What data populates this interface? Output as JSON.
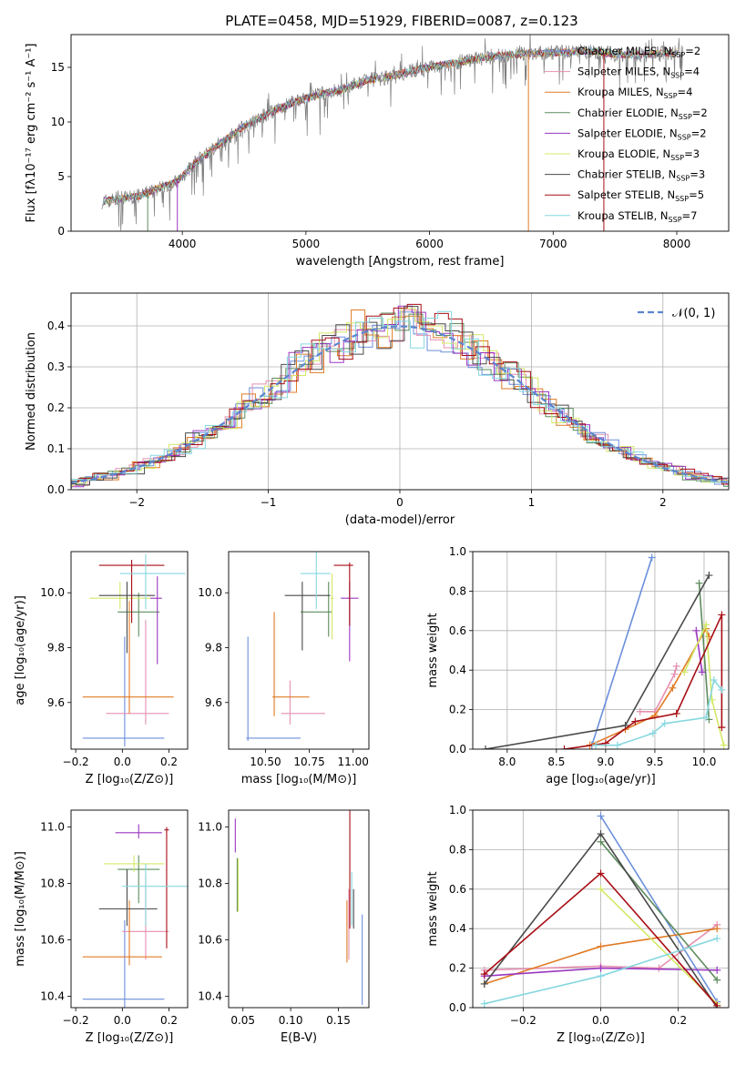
{
  "title": "PLATE=0458, MJD=51929, FIBERID=0087, z=0.123",
  "series_colors": [
    "#6b8fdc",
    "#e58fb0",
    "#e07b25",
    "#5e8c5e",
    "#9a36c0",
    "#d4e867",
    "#4a4a4a",
    "#a80e15",
    "#86d7df"
  ],
  "chart_data": [
    {
      "type": "line",
      "panel": "spectrum",
      "xlabel": "wavelength [Angstrom, rest frame]",
      "ylabel": "Flux [fλ10⁻¹⁷ erg cm⁻² s⁻¹ A⁻¹]",
      "xlim": [
        3100,
        8420
      ],
      "ylim": [
        0,
        18
      ],
      "xticks": [
        "4000",
        "5000",
        "6000",
        "7000",
        "8000"
      ],
      "yticks": [
        "0",
        "5",
        "10",
        "15"
      ],
      "data_color": "#7f7f7f",
      "data_envelope": {
        "x": [
          3350,
          3500,
          3650,
          3800,
          3950,
          4100,
          4300,
          4500,
          4700,
          4900,
          5100,
          5300,
          5500,
          5700,
          5900,
          6100,
          6300,
          6500,
          6700,
          6900,
          7100,
          7300,
          7500,
          7700,
          7900,
          8050
        ],
        "y": [
          2.7,
          3.0,
          3.2,
          3.9,
          4.5,
          6.2,
          8.0,
          9.6,
          10.8,
          11.8,
          12.5,
          13.0,
          13.8,
          14.2,
          14.8,
          15.2,
          15.6,
          16.0,
          16.2,
          16.3,
          16.4,
          16.5,
          16.2,
          16.1,
          16.3,
          16.4
        ]
      },
      "legend": [
        {
          "base": "Chabrier MILES, N",
          "sub": "SSP",
          "val": "=2"
        },
        {
          "base": "Salpeter MILES, N",
          "sub": "SSP",
          "val": "=4"
        },
        {
          "base": "Kroupa MILES, N",
          "sub": "SSP",
          "val": "=4"
        },
        {
          "base": "Chabrier ELODIE, N",
          "sub": "SSP",
          "val": "=2"
        },
        {
          "base": "Salpeter ELODIE, N",
          "sub": "SSP",
          "val": "=2"
        },
        {
          "base": "Kroupa ELODIE, N",
          "sub": "SSP",
          "val": "=3"
        },
        {
          "base": "Chabrier STELIB, N",
          "sub": "SSP",
          "val": "=3"
        },
        {
          "base": "Salpeter STELIB, N",
          "sub": "SSP",
          "val": "=5"
        },
        {
          "base": "Kroupa STELIB, N",
          "sub": "SSP",
          "val": "=7"
        }
      ],
      "legend_position": "right"
    },
    {
      "type": "histogram",
      "panel": "residuals",
      "xlabel": "(data-model)/error",
      "ylabel": "Normed distribution",
      "xlim": [
        -2.5,
        2.5
      ],
      "ylim": [
        0,
        0.48
      ],
      "xticks": [
        "−2",
        "−1",
        "0",
        "1",
        "2"
      ],
      "yticks": [
        "0.0",
        "0.1",
        "0.2",
        "0.3",
        "0.4"
      ],
      "grid": true,
      "legend": "𝒩(0, 1)",
      "legend_position": "top-right"
    },
    {
      "type": "scatter",
      "panel": "age-vs-Z",
      "xlabel": "Z [log₁₀(Z/Z⊙)]",
      "ylabel": "age  [log₁₀(age/yr)]",
      "xlim": [
        -0.22,
        0.28
      ],
      "ylim": [
        9.43,
        10.15
      ],
      "xticks": [
        "−0.2",
        "0.0",
        "0.2"
      ],
      "yticks": [
        "9.6",
        "9.8",
        "10.0"
      ],
      "points": [
        {
          "x": 0.01,
          "y": 9.47,
          "xerr": [
            0.18,
            0.17
          ],
          "yerr": [
            0.03,
            0.37
          ]
        },
        {
          "x": 0.1,
          "y": 9.56,
          "xerr": [
            0.17,
            0.1
          ],
          "yerr": [
            0.04,
            0.34
          ]
        },
        {
          "x": 0.03,
          "y": 9.62,
          "xerr": [
            0.2,
            0.19
          ],
          "yerr": [
            0.06,
            0.35
          ]
        },
        {
          "x": 0.07,
          "y": 9.93,
          "xerr": [
            0.09,
            0.09
          ],
          "yerr": [
            0.09,
            0.07
          ]
        },
        {
          "x": 0.15,
          "y": 9.98,
          "xerr": [
            0.03,
            0.02
          ],
          "yerr": [
            0.24,
            0.08
          ]
        },
        {
          "x": -0.01,
          "y": 9.98,
          "xerr": [
            0.13,
            0.13
          ],
          "yerr": [
            0.04,
            0.06
          ]
        },
        {
          "x": 0.02,
          "y": 9.99,
          "xerr": [
            0.12,
            0.12
          ],
          "yerr": [
            0.21,
            0.05
          ]
        },
        {
          "x": 0.04,
          "y": 10.1,
          "xerr": [
            0.14,
            0.14
          ],
          "yerr": [
            0.21,
            0.02
          ]
        },
        {
          "x": 0.1,
          "y": 10.07,
          "xerr": [
            0.11,
            0.17
          ],
          "yerr": [
            0.13,
            0.07
          ]
        }
      ]
    },
    {
      "type": "scatter",
      "panel": "age-vs-mass",
      "xlabel": "mass [log₁₀(M/M⊙)]",
      "ylabel": "",
      "xlim": [
        10.29,
        11.09
      ],
      "ylim": [
        9.43,
        10.15
      ],
      "xticks": [
        "10.50",
        "10.75",
        "11.00"
      ],
      "yticks": [
        "9.6",
        "9.8",
        "10.0"
      ],
      "points": [
        {
          "x": 10.4,
          "y": 9.47,
          "xerr": [
            0.01,
            0.3
          ],
          "yerr": [
            0.01,
            0.37
          ]
        },
        {
          "x": 10.64,
          "y": 9.56,
          "xerr": [
            0.05,
            0.2
          ],
          "yerr": [
            0.04,
            0.12
          ]
        },
        {
          "x": 10.55,
          "y": 9.62,
          "xerr": [
            0.01,
            0.2
          ],
          "yerr": [
            0.07,
            0.31
          ]
        },
        {
          "x": 10.86,
          "y": 9.93,
          "xerr": [
            0.16,
            0.02
          ],
          "yerr": [
            0.09,
            0.11
          ]
        },
        {
          "x": 10.98,
          "y": 9.98,
          "xerr": [
            0.05,
            0.05
          ],
          "yerr": [
            0.23,
            0.06
          ]
        },
        {
          "x": 10.88,
          "y": 9.98,
          "xerr": [
            0.01,
            0.01
          ],
          "yerr": [
            0.15,
            0.09
          ]
        },
        {
          "x": 10.71,
          "y": 9.99,
          "xerr": [
            0.1,
            0.16
          ],
          "yerr": [
            0.2,
            0.05
          ]
        },
        {
          "x": 10.98,
          "y": 10.1,
          "xerr": [
            0.09,
            0.02
          ],
          "yerr": [
            0.22,
            0.01
          ]
        },
        {
          "x": 10.79,
          "y": 10.07,
          "xerr": [
            0.09,
            0.08
          ],
          "yerr": [
            0.13,
            0.08
          ]
        }
      ]
    },
    {
      "type": "line",
      "panel": "mass-weight-vs-age",
      "xlabel": "age  [log₁₀(age/yr)]",
      "ylabel": "mass weight",
      "xlim": [
        7.65,
        10.25
      ],
      "ylim": [
        0,
        1
      ],
      "xticks": [
        "8.0",
        "8.5",
        "9.0",
        "9.5",
        "10.0"
      ],
      "yticks": [
        "0.0",
        "0.2",
        "0.4",
        "0.6",
        "0.8",
        "1.0"
      ],
      "grid": true,
      "series": [
        {
          "x": [
            8.86,
            9.47
          ],
          "y": [
            0.02,
            0.97
          ]
        },
        {
          "x": [
            9.35,
            9.5,
            9.7,
            9.72
          ],
          "y": [
            0.19,
            0.19,
            0.38,
            0.42
          ]
        },
        {
          "x": [
            8.84,
            9.2,
            9.5,
            9.68,
            10.02,
            10.05
          ],
          "y": [
            0.02,
            0.1,
            0.17,
            0.31,
            0.61,
            0.57
          ]
        },
        {
          "x": [
            9.95,
            10.05
          ],
          "y": [
            0.84,
            0.15
          ]
        },
        {
          "x": [
            9.92,
            9.98
          ],
          "y": [
            0.6,
            0.39
          ]
        },
        {
          "x": [
            9.8,
            10.02,
            10.08,
            10.2
          ],
          "y": [
            0.39,
            0.63,
            0.25,
            0.02
          ]
        },
        {
          "x": [
            7.78,
            9.2,
            10.05
          ],
          "y": [
            0.0,
            0.12,
            0.88
          ]
        },
        {
          "x": [
            8.58,
            9.0,
            9.3,
            9.72,
            10.18,
            10.18
          ],
          "y": [
            0.0,
            0.03,
            0.14,
            0.18,
            0.68,
            0.11
          ]
        },
        {
          "x": [
            8.9,
            9.12,
            9.48,
            9.6,
            10.02,
            10.1,
            10.18
          ],
          "y": [
            0.02,
            0.02,
            0.08,
            0.13,
            0.16,
            0.35,
            0.3
          ]
        }
      ]
    },
    {
      "type": "scatter",
      "panel": "mass-vs-Z",
      "xlabel": "Z [log₁₀(Z/Z⊙)]",
      "ylabel": "mass [log₁₀(M/M⊙)]",
      "xlim": [
        -0.22,
        0.28
      ],
      "ylim": [
        10.36,
        11.06
      ],
      "xticks": [
        "−0.2",
        "0.0",
        "0.2"
      ],
      "yticks": [
        "10.4",
        "10.6",
        "10.8",
        "11.0"
      ],
      "points": [
        {
          "x": 0.01,
          "y": 10.39,
          "xerr": [
            0.18,
            0.17
          ],
          "yerr": [
            0.03,
            0.28
          ]
        },
        {
          "x": 0.1,
          "y": 10.63,
          "xerr": [
            0.1,
            0.1
          ],
          "yerr": [
            0.1,
            0.2
          ]
        },
        {
          "x": 0.03,
          "y": 10.54,
          "xerr": [
            0.2,
            0.14
          ],
          "yerr": [
            0.03,
            0.2
          ]
        },
        {
          "x": 0.07,
          "y": 10.85,
          "xerr": [
            0.09,
            0.09
          ],
          "yerr": [
            0.12,
            0.05
          ]
        },
        {
          "x": 0.07,
          "y": 10.98,
          "xerr": [
            0.1,
            0.1
          ],
          "yerr": [
            0.02,
            0.03
          ]
        },
        {
          "x": 0.05,
          "y": 10.87,
          "xerr": [
            0.13,
            0.13
          ],
          "yerr": [
            0.03,
            0.03
          ]
        },
        {
          "x": 0.02,
          "y": 10.71,
          "xerr": [
            0.12,
            0.13
          ],
          "yerr": [
            0.06,
            0.14
          ]
        },
        {
          "x": 0.19,
          "y": 10.99,
          "xerr": [
            0.01,
            0.01
          ],
          "yerr": [
            0.42,
            0.01
          ]
        },
        {
          "x": 0.1,
          "y": 10.79,
          "xerr": [
            0.1,
            0.18
          ],
          "yerr": [
            0.14,
            0.08
          ]
        }
      ]
    },
    {
      "type": "scatter",
      "panel": "mass-vs-EBV",
      "xlabel": "E(B-V)",
      "ylabel": "",
      "xlim": [
        0.035,
        0.182
      ],
      "ylim": [
        10.36,
        11.06
      ],
      "xticks": [
        "0.05",
        "0.10",
        "0.15"
      ],
      "yticks": [
        "10.4",
        "10.6",
        "10.8",
        "11.0"
      ],
      "points": [
        {
          "x": 0.175,
          "y": 10.39,
          "yerr": [
            0.02,
            0.3
          ]
        },
        {
          "x": 0.161,
          "y": 10.63,
          "yerr": [
            0.1,
            0.15
          ]
        },
        {
          "x": 0.159,
          "y": 10.54,
          "yerr": [
            0.02,
            0.2
          ]
        },
        {
          "x": 0.044,
          "y": 10.85,
          "yerr": [
            0.15,
            0.04
          ]
        },
        {
          "x": 0.042,
          "y": 10.98,
          "yerr": [
            0.07,
            0.05
          ]
        },
        {
          "x": 0.045,
          "y": 10.87,
          "yerr": [
            0.17,
            0.02
          ]
        },
        {
          "x": 0.166,
          "y": 10.71,
          "yerr": [
            0.07,
            0.07
          ]
        },
        {
          "x": 0.162,
          "y": 10.99,
          "yerr": [
            0.35,
            0.12
          ]
        },
        {
          "x": 0.164,
          "y": 10.79,
          "yerr": [
            0.14,
            0.05
          ]
        }
      ]
    },
    {
      "type": "line",
      "panel": "mass-weight-vs-Z",
      "xlabel": "Z [log₁₀(Z/Z⊙)]",
      "ylabel": "mass weight",
      "xlim": [
        -0.33,
        0.33
      ],
      "ylim": [
        0,
        1
      ],
      "xticks": [
        "−0.2",
        "0.0",
        "0.2"
      ],
      "yticks": [
        "0.0",
        "0.2",
        "0.4",
        "0.6",
        "0.8",
        "1.0"
      ],
      "grid": true,
      "series": [
        {
          "x": [
            0.0,
            0.3
          ],
          "y": [
            0.97,
            0.03
          ]
        },
        {
          "x": [
            -0.3,
            0.0,
            0.15,
            0.3
          ],
          "y": [
            0.19,
            0.21,
            0.2,
            0.42
          ]
        },
        {
          "x": [
            -0.3,
            0.0,
            0.3
          ],
          "y": [
            0.12,
            0.31,
            0.4
          ]
        },
        {
          "x": [
            0.0,
            0.3
          ],
          "y": [
            0.84,
            0.14
          ]
        },
        {
          "x": [
            -0.3,
            0.0,
            0.3
          ],
          "y": [
            0.16,
            0.2,
            0.19
          ]
        },
        {
          "x": [
            0.0,
            0.3
          ],
          "y": [
            0.6,
            0.02
          ]
        },
        {
          "x": [
            -0.3,
            0.0,
            0.3
          ],
          "y": [
            0.12,
            0.88,
            0.0
          ]
        },
        {
          "x": [
            -0.3,
            0.0,
            0.3
          ],
          "y": [
            0.17,
            0.68,
            0.01
          ]
        },
        {
          "x": [
            -0.3,
            0.0,
            0.3
          ],
          "y": [
            0.02,
            0.16,
            0.35
          ]
        }
      ]
    }
  ]
}
